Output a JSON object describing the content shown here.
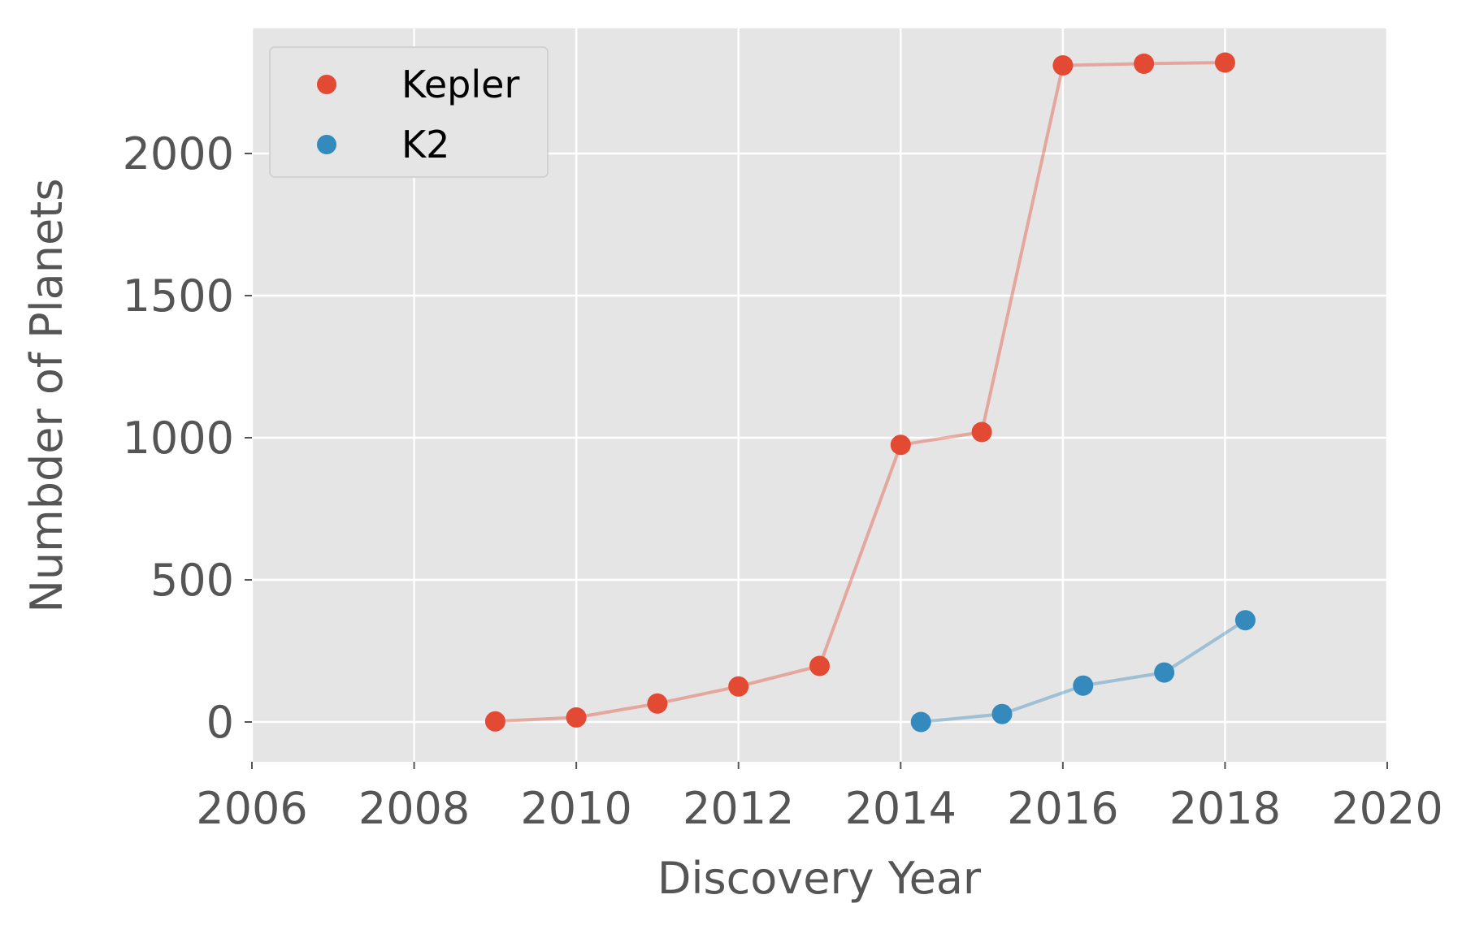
{
  "chart_data": {
    "type": "line",
    "xlabel": "Discovery Year",
    "ylabel": "Numbder of Planets",
    "xlim": [
      2006,
      2020
    ],
    "ylim": [
      -140,
      2440
    ],
    "xticks": [
      "2006",
      "2008",
      "2010",
      "2012",
      "2014",
      "2016",
      "2018",
      "2020"
    ],
    "yticks": [
      "0",
      "500",
      "1000",
      "1500",
      "2000"
    ],
    "grid": true,
    "legend_position": "top-left",
    "background": "#E5E5E5",
    "series": [
      {
        "name": "Kepler",
        "color": "#E24A33",
        "x": [
          2009,
          2010,
          2011,
          2012,
          2013,
          2014,
          2015,
          2016,
          2017,
          2018
        ],
        "y": [
          2,
          16,
          65,
          125,
          197,
          975,
          1020,
          2310,
          2316,
          2320
        ]
      },
      {
        "name": "K2",
        "color": "#348ABD",
        "x": [
          2014.25,
          2015.25,
          2016.25,
          2017.25,
          2018.25
        ],
        "y": [
          0,
          28,
          128,
          174,
          358
        ]
      }
    ]
  }
}
